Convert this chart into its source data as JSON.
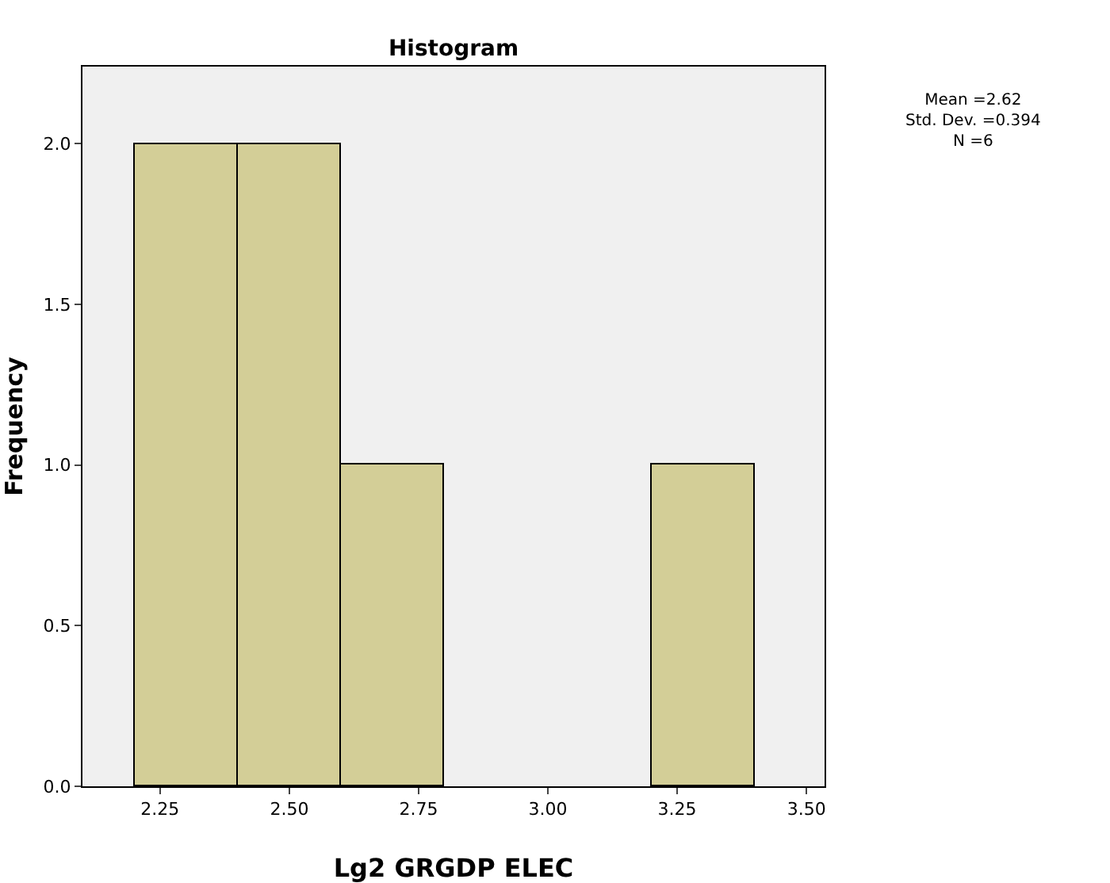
{
  "chart_data": {
    "type": "histogram",
    "title": "Histogram",
    "xlabel": "Lg2 GRGDP ELEC",
    "ylabel": "Frequency",
    "bins": [
      2.2,
      2.4,
      2.6,
      2.8,
      3.0,
      3.2,
      3.4
    ],
    "values": [
      2,
      2,
      1,
      0,
      0,
      1
    ],
    "color": "#d3ce97",
    "xlim": [
      2.1,
      3.535
    ],
    "xticks": [
      {
        "value": 2.25,
        "label": "2.25"
      },
      {
        "value": 2.5,
        "label": "2.50"
      },
      {
        "value": 2.75,
        "label": "2.75"
      },
      {
        "value": 3,
        "label": "3.00"
      },
      {
        "value": 3.25,
        "label": "3.25"
      },
      {
        "value": 3.5,
        "label": "3.50"
      }
    ],
    "ylim": [
      0,
      2.24
    ],
    "yticks": [
      {
        "value": 0,
        "label": "0.0"
      },
      {
        "value": 0.5,
        "label": "0.5"
      },
      {
        "value": 1,
        "label": "1.0"
      },
      {
        "value": 1.5,
        "label": "1.5"
      },
      {
        "value": 2,
        "label": "2.0"
      }
    ],
    "grid": false,
    "annotations": [
      "Mean =2.62",
      "Std. Dev. =0.394",
      "N =6"
    ]
  }
}
